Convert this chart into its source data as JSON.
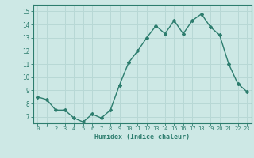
{
  "x": [
    0,
    1,
    2,
    3,
    4,
    5,
    6,
    7,
    8,
    9,
    10,
    11,
    12,
    13,
    14,
    15,
    16,
    17,
    18,
    19,
    20,
    21,
    22,
    23
  ],
  "y": [
    8.5,
    8.3,
    7.5,
    7.5,
    6.9,
    6.6,
    7.2,
    6.9,
    7.5,
    9.4,
    11.1,
    12.0,
    13.0,
    13.9,
    13.3,
    14.3,
    13.3,
    14.3,
    14.8,
    13.8,
    13.2,
    11.0,
    9.5,
    8.9
  ],
  "line_color": "#2d7d6e",
  "marker": "D",
  "marker_size": 2.0,
  "bg_color": "#cde8e5",
  "grid_color": "#b8d8d5",
  "xlabel": "Humidex (Indice chaleur)",
  "yticks": [
    7,
    8,
    9,
    10,
    11,
    12,
    13,
    14,
    15
  ],
  "xlim": [
    -0.5,
    23.5
  ],
  "ylim": [
    6.5,
    15.5
  ],
  "tick_color": "#2d7d6e",
  "label_color": "#2d7d6e",
  "spine_color": "#2d7d6e"
}
